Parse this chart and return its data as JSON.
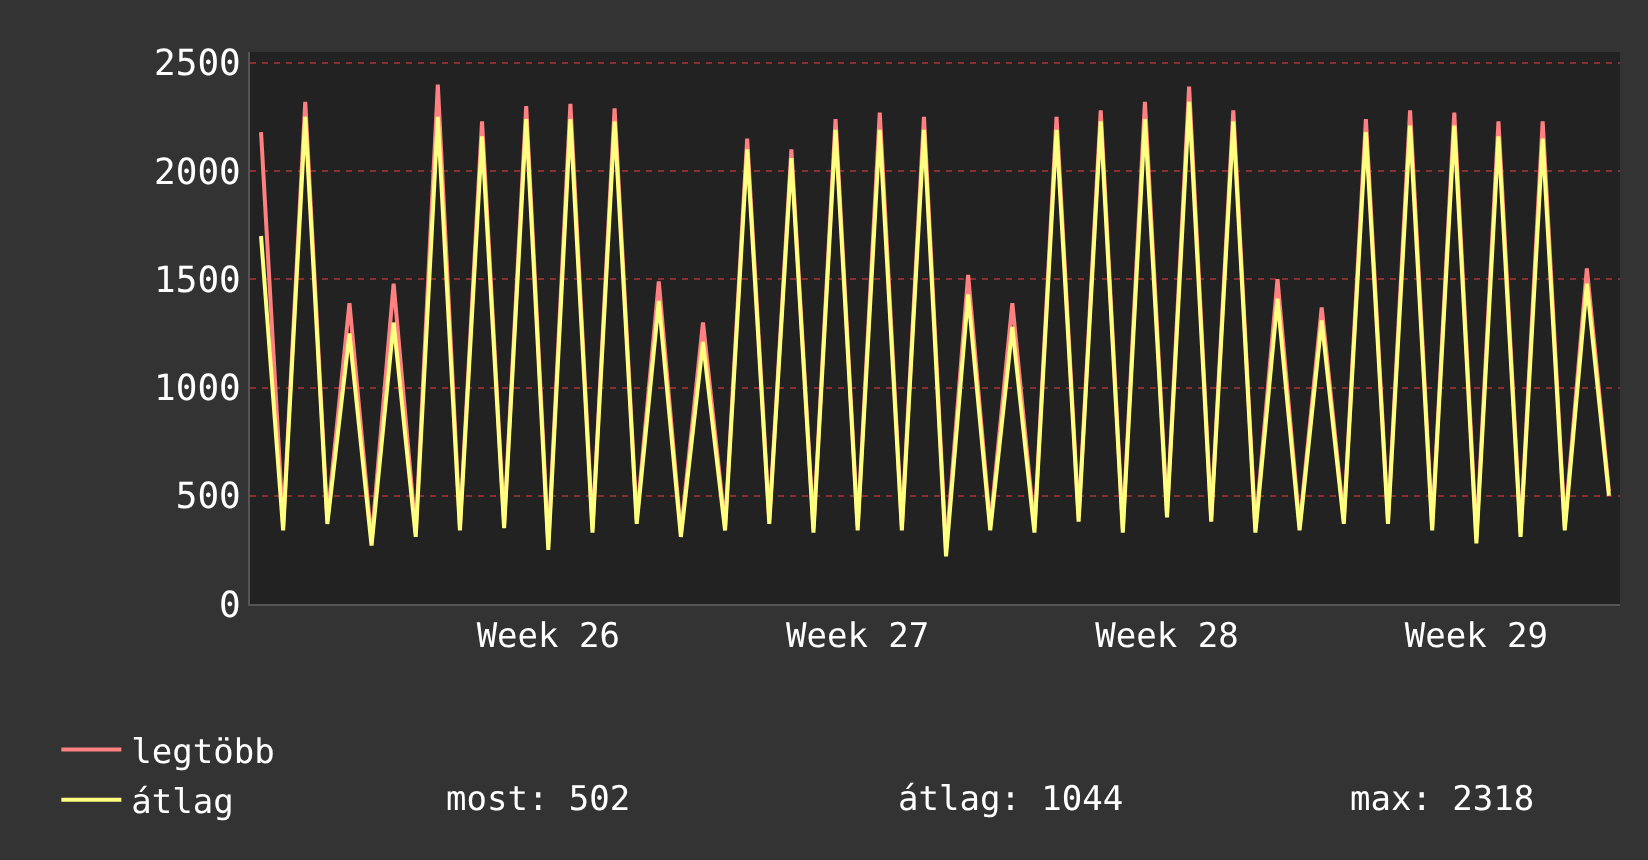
{
  "chart_data": {
    "type": "line",
    "categories": [
      null,
      null,
      null,
      null,
      null,
      null,
      null,
      null,
      null,
      null,
      null,
      null,
      null,
      "Week 26",
      null,
      null,
      null,
      null,
      null,
      null,
      null,
      null,
      null,
      null,
      null,
      null,
      null,
      "Week 27",
      null,
      null,
      null,
      null,
      null,
      null,
      null,
      null,
      null,
      null,
      null,
      null,
      null,
      "Week 28",
      null,
      null,
      null,
      null,
      null,
      null,
      null,
      null,
      null,
      null,
      null,
      null,
      null,
      "Week 29",
      null,
      null,
      null,
      null,
      null,
      null
    ],
    "series": [
      {
        "name": "legtöbb",
        "color": "#ff8080",
        "values": [
          2180,
          360,
          2320,
          390,
          1390,
          290,
          1480,
          330,
          2400,
          360,
          2230,
          370,
          2300,
          280,
          2310,
          350,
          2290,
          390,
          1490,
          330,
          1300,
          360,
          2150,
          390,
          2100,
          350,
          2240,
          360,
          2270,
          360,
          2250,
          250,
          1520,
          360,
          1390,
          350,
          2250,
          400,
          2280,
          350,
          2320,
          420,
          2390,
          400,
          2280,
          350,
          1500,
          360,
          1370,
          390,
          2240,
          390,
          2280,
          360,
          2270,
          310,
          2230,
          330,
          2230,
          360,
          1550,
          520
        ]
      },
      {
        "name": "átlag",
        "color": "#ffff80",
        "values": [
          1700,
          340,
          2250,
          370,
          1250,
          270,
          1300,
          310,
          2250,
          340,
          2160,
          350,
          2240,
          250,
          2240,
          330,
          2230,
          370,
          1400,
          310,
          1210,
          340,
          2100,
          370,
          2060,
          330,
          2190,
          340,
          2190,
          340,
          2190,
          220,
          1430,
          340,
          1280,
          330,
          2190,
          380,
          2230,
          330,
          2240,
          400,
          2320,
          380,
          2230,
          330,
          1410,
          340,
          1310,
          370,
          2180,
          370,
          2210,
          340,
          2210,
          280,
          2160,
          310,
          2150,
          340,
          1480,
          500
        ]
      }
    ],
    "ylim": [
      0,
      2550
    ],
    "yticks": [
      0,
      500,
      1000,
      1500,
      2000,
      2500
    ],
    "grid": "y",
    "legend": "bottom left",
    "marker": "none",
    "line_style": "solid",
    "annotations": [
      "most: 502",
      "átlag: 1044",
      "max: 2318"
    ]
  }
}
